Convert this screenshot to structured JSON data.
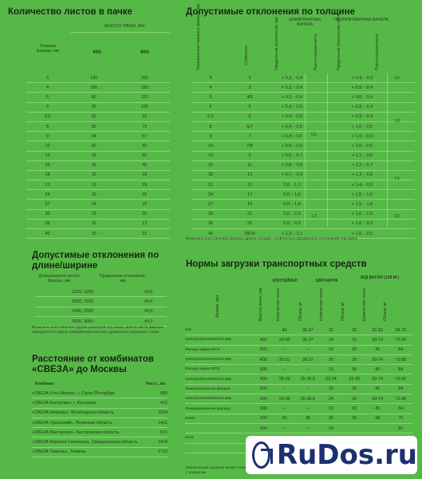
{
  "sheets": {
    "title": "Количество листов в пачке",
    "col_thick": "Толщина фанеры, мм",
    "col_height": "ВЫСОТА ПАЧКИ, ММ",
    "h400": "400",
    "h600": "600",
    "rows": [
      [
        "3",
        "130",
        "200"
      ],
      [
        "4",
        "100",
        "150"
      ],
      [
        "5",
        "80",
        "120"
      ],
      [
        "6",
        "65",
        "100"
      ],
      [
        "6,5",
        "62",
        "92"
      ],
      [
        "8",
        "50",
        "75"
      ],
      [
        "9",
        "44",
        "67"
      ],
      [
        "10",
        "40",
        "60"
      ],
      [
        "12",
        "33",
        "50"
      ],
      [
        "15",
        "26",
        "40"
      ],
      [
        "18",
        "22",
        "33"
      ],
      [
        "21",
        "19",
        "29"
      ],
      [
        "24",
        "16",
        "25"
      ],
      [
        "27",
        "14",
        "22"
      ],
      [
        "30",
        "13",
        "20"
      ],
      [
        "35",
        "11",
        "17"
      ],
      [
        "40",
        "10",
        "15"
      ]
    ]
  },
  "thick": {
    "title": "Допустимые отклонения по толщине",
    "sanded": "ШЛИФОВАННАЯ ФАНЕРА",
    "unsanded": "НЕШЛИФОВАННАЯ ФАНЕРА",
    "h_nom": "Номинальная толщина фанеры, мм",
    "h_layers": "Слойность",
    "h_dev": "Предельное отклонение, мм",
    "h_var": "Разно-толщинность",
    "rows": [
      [
        "3",
        "3",
        "+ 0,3; - 0,4",
        "+ 0,4; - 0,3"
      ],
      [
        "4",
        "3",
        "+ 0,3; - 0,4",
        "+ 0,8; - 0,4"
      ],
      [
        "5",
        "4/5",
        "+ 0,3; - 0,4",
        "+ 0,8; - 0,4"
      ],
      [
        "6",
        "5",
        "+ 0,4; - 0,5",
        "+ 0,9; - 0,4"
      ],
      [
        "6,5",
        "5",
        "+ 0,4; - 0,5",
        "+ 0,9; - 0,4"
      ],
      [
        "8",
        "6/7",
        "+ 0,4; - 0,5",
        "+ 1,0; - 0,5"
      ],
      [
        "9",
        "7",
        "+ 0,4; - 0,6",
        "+ 1,0; - 0,6"
      ],
      [
        "10",
        "7/8",
        "+ 0,5; - 0,6",
        "+ 1,0; - 0,5"
      ],
      [
        "12",
        "9",
        "+ 0,5; - 0,7",
        "+ 1,1; - 0,6"
      ],
      [
        "15",
        "11",
        "+ 0,6; - 0,8",
        "+ 1,2; - 0,7"
      ],
      [
        "18",
        "13",
        "+ 0,7; - 0,9",
        "+ 1,3; - 0,8"
      ],
      [
        "21",
        "15",
        "0,0; - 1,1",
        "+ 1,4; - 0,9"
      ],
      [
        "24",
        "17",
        "0,0; - 1,5",
        "+ 1,5; - 1,0"
      ],
      [
        "27",
        "19",
        "0,0; - 1,8",
        "+ 1,5; - 1,8"
      ],
      [
        "30",
        "21",
        "0,0; - 2,0",
        "+ 1,6; - 2,0"
      ],
      [
        "35",
        "25",
        "0,0; - 2,0",
        "+ 1,6; - 2,0"
      ],
      [
        "40",
        "28/29",
        "+ 1,2; - 1,2",
        "+ 1,6; - 2,0"
      ]
    ],
    "var_s1": "0,6",
    "var_s2": "1,0",
    "var_u1": "0,6",
    "var_u2": "1,0",
    "var_u3": "1,5",
    "var_u4": "2,0",
    "note": "Возможно изготовление фанеры других толщин, слойности и предельных отклонений под заказ."
  },
  "len": {
    "title": "Допустимые отклонения по длине/ширине",
    "c1": "Длина/ширина листов фанеры, мм",
    "c2": "Предельное отклонение, мм",
    "rows": [
      [
        "1220, 1250",
        "±3,0"
      ],
      [
        "1500, 1525",
        "±4,0"
      ],
      [
        "2440, 2500",
        "±4,0"
      ],
      [
        "3000, 3050",
        "±5,0"
      ]
    ],
    "note": "Возможно изготовление других размеров под заказ. Длина листа фанеры определяется вдоль направления волокон древесины наружных слоев."
  },
  "dist": {
    "title": "Расстояние от комбинатов «СВЕЗА» до Москвы",
    "c1": "Комбинат",
    "c2": "Расст., км",
    "rows": [
      [
        "«СВЕЗА Усть-Ижора», г. Санкт-Петербург",
        "685"
      ],
      [
        "«СВЕЗА Кострома», г. Кострома",
        "412"
      ],
      [
        "«СВЕЗА Новатор», Вологодская область",
        "1024"
      ],
      [
        "«СВЕЗА Уральский», Пермская область",
        "1411"
      ],
      [
        "«СВЕЗА Мантурово», Костромская область",
        "671"
      ],
      [
        "«СВЕЗА Верхняя Синячиха», Свердловская область",
        "1474"
      ],
      [
        "«СВЕЗА Тюмень», Тюмень",
        "1710"
      ]
    ]
  },
  "load": {
    "title": "Нормы загрузки транспортных средств",
    "container": "КОНТЕЙНЕР",
    "eurotruck": "ЕВРОФУРА",
    "wagon": "Ж/Д ВАГОН (138 М³)",
    "h_format": "Формат, фут",
    "h_height": "Высота пачки, мм",
    "h_count": "Количество пачек",
    "h_volume": "Объем, м³",
    "rows": [
      [
        "5х5",
        "",
        "40",
        "36-37",
        "32",
        "30",
        "62-82",
        "58-75"
      ],
      [
        "4х8х4(1250х2500х120 мм)",
        "400",
        "29-30",
        "36-37",
        "24",
        "25",
        "60-74",
        "75-92"
      ],
      [
        "Фанера марки ФСФ",
        "600",
        "–",
        "–",
        "16",
        "30",
        "45",
        "84"
      ],
      [
        "4х8х4(1220х2440х120 мм)",
        "400",
        "30-31",
        "36-37",
        "25",
        "30",
        "60-74",
        "71-88"
      ],
      [
        "Фанера марки ФСФ",
        "600",
        "–",
        "–",
        "16",
        "30",
        "45",
        "84"
      ],
      [
        "4х8х4(1250х2500х120 мм)",
        "400",
        "28-29",
        "35-36,5",
        "23-24",
        "29-30",
        "62-74",
        "75-92"
      ],
      [
        "Ламинированная фанера",
        "600",
        "–",
        "–",
        "16",
        "30",
        "45",
        "84"
      ],
      [
        "4х8х4(1220х2440х120 мм)",
        "400",
        "29-30",
        "35-36,5",
        "24",
        "30",
        "60-74",
        "71-88"
      ],
      [
        "Ламинированная фанера",
        "600",
        "–",
        "–",
        "16",
        "30",
        "45",
        "84"
      ],
      [
        "5х8х5",
        "400",
        "25",
        "38",
        "30",
        "30",
        "48",
        "70"
      ],
      [
        "",
        "600",
        "–",
        "–",
        "18",
        "",
        "",
        "80"
      ],
      [
        "5х10",
        "",
        "19",
        "",
        "",
        "",
        "",
        "60"
      ],
      [
        "",
        "",
        "12",
        "",
        "",
        "",
        "",
        ""
      ]
    ],
    "note": "Фактическая загрузка может отличаться по согласованию с клиентом."
  },
  "watermark": {
    "text": "RuDos.ru",
    "logo": "rudos-logo-icon"
  }
}
